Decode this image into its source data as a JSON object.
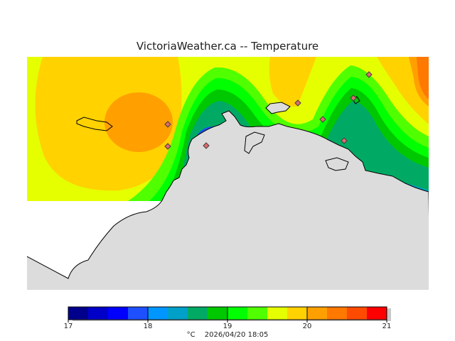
{
  "header": {
    "title": "VictoriaWeather.ca -- Temperature"
  },
  "map": {
    "variable": "Temperature",
    "land_color": "#dcdcdc",
    "station_color": "#e06c6c",
    "stations": [
      {
        "id": "s1"
      },
      {
        "id": "s2"
      },
      {
        "id": "s3"
      },
      {
        "id": "s4"
      },
      {
        "id": "s5"
      },
      {
        "id": "s6"
      },
      {
        "id": "s7"
      },
      {
        "id": "s8"
      }
    ]
  },
  "legend": {
    "unit": "°C",
    "timestamp": "2026/04/20 18:05",
    "min": 17,
    "max": 21,
    "tick_labels": [
      "17",
      "18",
      "19",
      "20",
      "21"
    ],
    "colors": [
      "#00008c",
      "#0000c8",
      "#0000ff",
      "#1e50ff",
      "#0096ff",
      "#00a0c8",
      "#00aa64",
      "#00c800",
      "#00ff00",
      "#50ff00",
      "#e6ff00",
      "#ffd200",
      "#ffa000",
      "#ff7800",
      "#ff4b00",
      "#ff0000"
    ]
  }
}
